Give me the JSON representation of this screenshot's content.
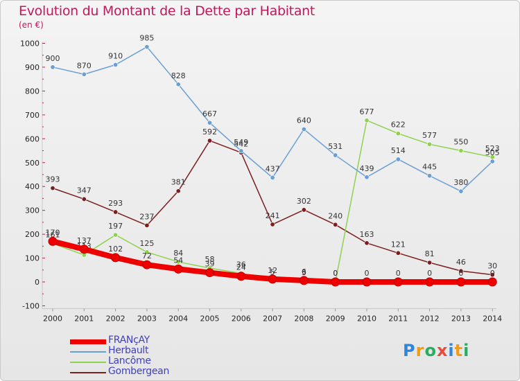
{
  "chart_data": {
    "type": "line",
    "title": "Evolution du Montant de la Dette par Habitant",
    "unit": "(en €)",
    "xlabel": "",
    "ylabel": "",
    "x": [
      "2000",
      "2001",
      "2002",
      "2003",
      "2004",
      "2005",
      "2006",
      "2007",
      "2008",
      "2009",
      "2010",
      "2011",
      "2012",
      "2013",
      "2014"
    ],
    "ylim": [
      -100,
      1000
    ],
    "yticks": [
      -100,
      0,
      100,
      200,
      300,
      400,
      500,
      600,
      700,
      800,
      900,
      1000
    ],
    "grid": false,
    "legend_position": "bottom-left",
    "series": [
      {
        "name": "Gombergean",
        "color": "#7b1e1e",
        "values": [
          393,
          347,
          293,
          237,
          381,
          592,
          542,
          241,
          302,
          240,
          163,
          121,
          81,
          46,
          30
        ],
        "labels": [
          "393",
          "347",
          "293",
          "237",
          "381",
          "592",
          "542",
          "241",
          "302",
          "240",
          "163",
          "121",
          "81",
          "46",
          "30"
        ]
      },
      {
        "name": "Lancôme",
        "color": "#8fd14f",
        "values": [
          161,
          113,
          197,
          125,
          84,
          58,
          36,
          5,
          3,
          0,
          677,
          622,
          577,
          550,
          523
        ],
        "labels": [
          "161",
          "113",
          "197",
          "125",
          "84",
          "58",
          "36",
          "5",
          "3",
          "0",
          "677",
          "622",
          "577",
          "550",
          "523"
        ]
      },
      {
        "name": "Herbault",
        "color": "#6a9fd4",
        "values": [
          900,
          870,
          910,
          985,
          828,
          667,
          549,
          437,
          640,
          531,
          439,
          514,
          445,
          380,
          505
        ],
        "labels": [
          "900",
          "870",
          "910",
          "985",
          "828",
          "667",
          "549",
          "437",
          "640",
          "531",
          "439",
          "514",
          "445",
          "380",
          "505"
        ]
      },
      {
        "name": "FRANçAY",
        "color": "#ee0000",
        "values": [
          170,
          137,
          102,
          72,
          54,
          39,
          24,
          12,
          6,
          0,
          0,
          0,
          0,
          0,
          0
        ],
        "labels": [
          "170",
          "137",
          "102",
          "72",
          "54",
          "39",
          "24",
          "12",
          "6",
          "0",
          "0",
          "0",
          "0",
          "0",
          "0"
        ]
      }
    ]
  },
  "legend": {
    "items": [
      {
        "name": "FRANçAY",
        "color": "#ee0000",
        "thickness": 7
      },
      {
        "name": "Herbault",
        "color": "#6a9fd4",
        "thickness": 2
      },
      {
        "name": "Lancôme",
        "color": "#8fd14f",
        "thickness": 2
      },
      {
        "name": "Gombergean",
        "color": "#7b1e1e",
        "thickness": 2
      }
    ]
  },
  "logo": {
    "letters": [
      "P",
      "r",
      "o",
      "x",
      "i",
      "t",
      "i"
    ],
    "colors": [
      "#2e86de",
      "#f39c12",
      "#27ae60",
      "#e74c3c",
      "#2e86de",
      "#f39c12",
      "#27ae60"
    ]
  }
}
